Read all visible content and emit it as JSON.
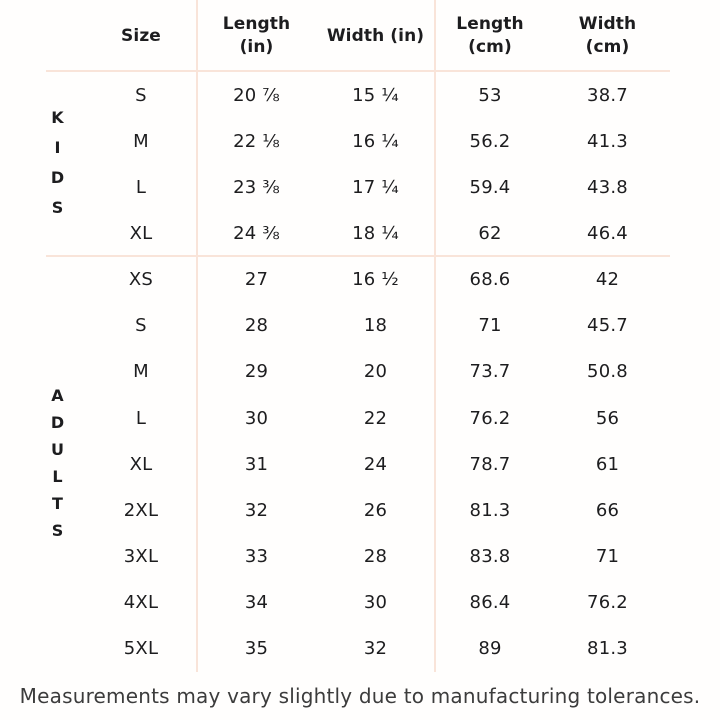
{
  "table": {
    "columns": [
      {
        "id": "size",
        "lines": [
          "Size"
        ]
      },
      {
        "id": "length_in",
        "lines": [
          "Length",
          "(in)"
        ]
      },
      {
        "id": "width_in",
        "lines": [
          "Width (in)"
        ]
      },
      {
        "id": "length_cm",
        "lines": [
          "Length",
          "(cm)"
        ]
      },
      {
        "id": "width_cm",
        "lines": [
          "Width",
          "(cm)"
        ]
      }
    ],
    "sections": [
      {
        "group": "KIDS",
        "rows": [
          {
            "size": "S",
            "length_in": "20 ⅞",
            "width_in": "15 ¼",
            "length_cm": "53",
            "width_cm": "38.7"
          },
          {
            "size": "M",
            "length_in": "22 ⅛",
            "width_in": "16 ¼",
            "length_cm": "56.2",
            "width_cm": "41.3"
          },
          {
            "size": "L",
            "length_in": "23 ⅜",
            "width_in": "17 ¼",
            "length_cm": "59.4",
            "width_cm": "43.8"
          },
          {
            "size": "XL",
            "length_in": "24 ⅜",
            "width_in": "18 ¼",
            "length_cm": "62",
            "width_cm": "46.4"
          }
        ]
      },
      {
        "group": "ADULTS",
        "rows": [
          {
            "size": "XS",
            "length_in": "27",
            "width_in": "16 ½",
            "length_cm": "68.6",
            "width_cm": "42"
          },
          {
            "size": "S",
            "length_in": "28",
            "width_in": "18",
            "length_cm": "71",
            "width_cm": "45.7"
          },
          {
            "size": "M",
            "length_in": "29",
            "width_in": "20",
            "length_cm": "73.7",
            "width_cm": "50.8"
          },
          {
            "size": "L",
            "length_in": "30",
            "width_in": "22",
            "length_cm": "76.2",
            "width_cm": "56"
          },
          {
            "size": "XL",
            "length_in": "31",
            "width_in": "24",
            "length_cm": "78.7",
            "width_cm": "61"
          },
          {
            "size": "2XL",
            "length_in": "32",
            "width_in": "26",
            "length_cm": "81.3",
            "width_cm": "66"
          },
          {
            "size": "3XL",
            "length_in": "33",
            "width_in": "28",
            "length_cm": "83.8",
            "width_cm": "71"
          },
          {
            "size": "4XL",
            "length_in": "34",
            "width_in": "30",
            "length_cm": "86.4",
            "width_cm": "76.2"
          },
          {
            "size": "5XL",
            "length_in": "35",
            "width_in": "32",
            "length_cm": "89",
            "width_cm": "81.3"
          }
        ]
      }
    ]
  },
  "footer": {
    "note": "Measurements may vary slightly due to manufacturing tolerances."
  },
  "colors": {
    "background": "#fffefd",
    "grid_line": "#f9e4d9",
    "table_text": "#1d1d1f",
    "footer_text": "#3c3c3c"
  }
}
